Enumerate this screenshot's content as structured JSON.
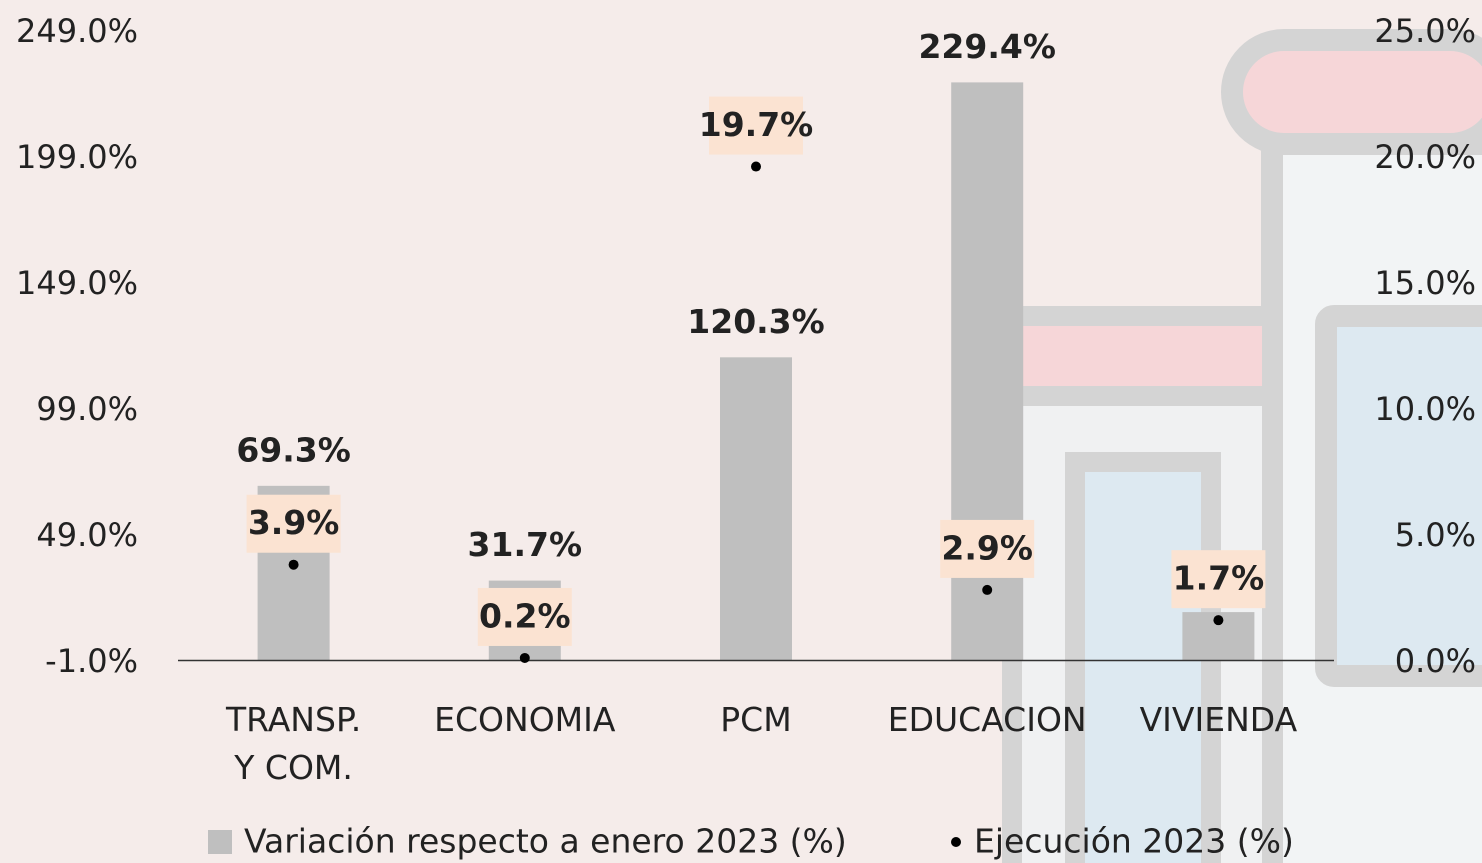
{
  "chart_data": {
    "type": "bar",
    "categories": [
      "TRANSP.\nY COM.",
      "ECONOMIA",
      "PCM",
      "EDUCACION",
      "VIVIENDA"
    ],
    "series": [
      {
        "name": "Variación respecto a enero 2023 (%)",
        "type": "bar",
        "color": "#bfbfbf",
        "values": [
          69.3,
          31.7,
          120.3,
          229.4,
          19.2
        ],
        "value_labels": [
          "69.3%",
          "31.7%",
          "120.3%",
          "229.4%",
          null
        ]
      },
      {
        "name": "Ejecución 2023 (%)",
        "type": "scatter",
        "axis": "y2",
        "color": "#000000",
        "values": [
          3.9,
          0.2,
          19.7,
          2.9,
          1.7
        ],
        "value_labels": [
          "3.9%",
          "0.2%",
          "19.7%",
          "2.9%",
          "1.7%"
        ]
      }
    ],
    "ylim": [
      -1,
      249
    ],
    "yticks": [
      {
        "value": -1,
        "label": "-1.0%"
      },
      {
        "value": 49,
        "label": "49.0%"
      },
      {
        "value": 99,
        "label": "99.0%"
      },
      {
        "value": 149,
        "label": "149.0%"
      },
      {
        "value": 199,
        "label": "199.0%"
      },
      {
        "value": 249,
        "label": "249.0%"
      }
    ],
    "y2lim": [
      0,
      25
    ],
    "y2ticks": [
      {
        "value": 0,
        "label": "0.0%"
      },
      {
        "value": 5,
        "label": "5.0%"
      },
      {
        "value": 10,
        "label": "10.0%"
      },
      {
        "value": 15,
        "label": "15.0%"
      },
      {
        "value": 20,
        "label": "20.0%"
      },
      {
        "value": 25,
        "label": "25.0%"
      }
    ],
    "legend": "bottom"
  }
}
